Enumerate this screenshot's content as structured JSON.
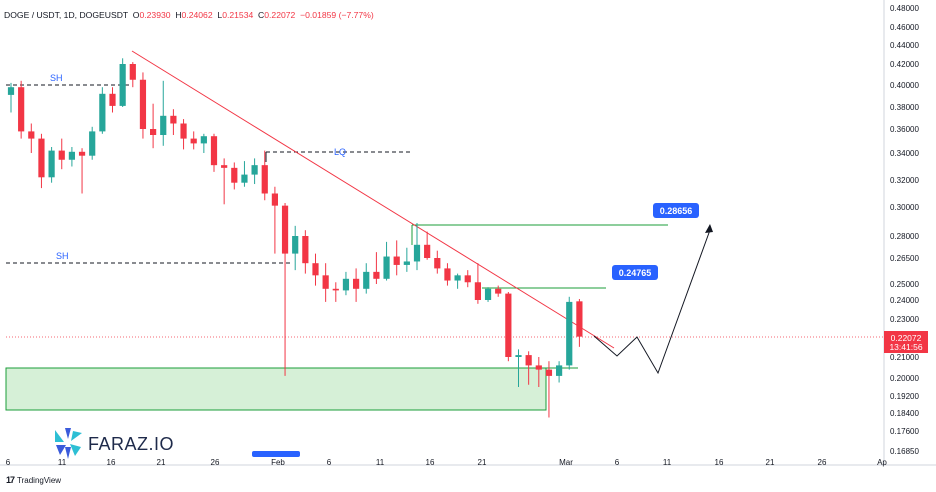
{
  "header": {
    "symbol": "DOGE / USDT, 1D, DOGEUSDT",
    "open_label": "O",
    "open": "0.23930",
    "high_label": "H",
    "high": "0.24062",
    "low_label": "L",
    "low": "0.21534",
    "close_label": "C",
    "close": "0.22072",
    "change": "−0.01859 (−7.77%)"
  },
  "footer": {
    "brand": "TradingView"
  },
  "watermark": {
    "text": "FARAZ.IO"
  },
  "colors": {
    "up": "#26a69a",
    "down": "#f23645",
    "trendline": "#f23645",
    "zone": "#c8ebc9",
    "target": "#2962ff"
  },
  "chart_data": {
    "type": "candlestick",
    "y_axis": {
      "ticks": [
        "0.48000",
        "0.46000",
        "0.44000",
        "0.42000",
        "0.40000",
        "0.38000",
        "0.36000",
        "0.34000",
        "0.32000",
        "0.30000",
        "0.28000",
        "0.26500",
        "0.25000",
        "0.24000",
        "0.23000",
        "0.22000",
        "0.21000",
        "0.20000",
        "0.19200",
        "0.18400",
        "0.17600",
        "0.16850"
      ],
      "last_price": "0.22072",
      "countdown": "13:41:56"
    },
    "x_axis": {
      "ticks": [
        "6",
        "11",
        "16",
        "21",
        "26",
        "Feb",
        "6",
        "11",
        "16",
        "21",
        "Mar",
        "6",
        "11",
        "16",
        "21",
        "26",
        "Ap"
      ]
    },
    "annotations": {
      "sh_upper": "SH",
      "sh_lower": "SH",
      "lq": "LQ",
      "target_1": "0.24765",
      "target_2": "0.28656"
    },
    "series": [
      {
        "o": 0.391,
        "h": 0.402,
        "l": 0.375,
        "c": 0.398
      },
      {
        "o": 0.398,
        "h": 0.404,
        "l": 0.352,
        "c": 0.358
      },
      {
        "o": 0.358,
        "h": 0.365,
        "l": 0.34,
        "c": 0.352
      },
      {
        "o": 0.352,
        "h": 0.356,
        "l": 0.314,
        "c": 0.322
      },
      {
        "o": 0.322,
        "h": 0.345,
        "l": 0.318,
        "c": 0.342
      },
      {
        "o": 0.342,
        "h": 0.352,
        "l": 0.328,
        "c": 0.335
      },
      {
        "o": 0.335,
        "h": 0.345,
        "l": 0.33,
        "c": 0.341
      },
      {
        "o": 0.341,
        "h": 0.344,
        "l": 0.31,
        "c": 0.338
      },
      {
        "o": 0.338,
        "h": 0.362,
        "l": 0.335,
        "c": 0.358
      },
      {
        "o": 0.358,
        "h": 0.398,
        "l": 0.356,
        "c": 0.392
      },
      {
        "o": 0.392,
        "h": 0.398,
        "l": 0.375,
        "c": 0.381
      },
      {
        "o": 0.381,
        "h": 0.426,
        "l": 0.38,
        "c": 0.42
      },
      {
        "o": 0.42,
        "h": 0.422,
        "l": 0.398,
        "c": 0.405
      },
      {
        "o": 0.405,
        "h": 0.412,
        "l": 0.352,
        "c": 0.36
      },
      {
        "o": 0.36,
        "h": 0.383,
        "l": 0.344,
        "c": 0.355
      },
      {
        "o": 0.355,
        "h": 0.404,
        "l": 0.346,
        "c": 0.372
      },
      {
        "o": 0.372,
        "h": 0.378,
        "l": 0.355,
        "c": 0.365
      },
      {
        "o": 0.365,
        "h": 0.369,
        "l": 0.343,
        "c": 0.352
      },
      {
        "o": 0.352,
        "h": 0.358,
        "l": 0.343,
        "c": 0.348
      },
      {
        "o": 0.348,
        "h": 0.356,
        "l": 0.34,
        "c": 0.354
      },
      {
        "o": 0.354,
        "h": 0.356,
        "l": 0.326,
        "c": 0.331
      },
      {
        "o": 0.331,
        "h": 0.336,
        "l": 0.302,
        "c": 0.329
      },
      {
        "o": 0.329,
        "h": 0.333,
        "l": 0.313,
        "c": 0.318
      },
      {
        "o": 0.318,
        "h": 0.334,
        "l": 0.315,
        "c": 0.324
      },
      {
        "o": 0.324,
        "h": 0.336,
        "l": 0.317,
        "c": 0.331
      },
      {
        "o": 0.331,
        "h": 0.342,
        "l": 0.305,
        "c": 0.31
      },
      {
        "o": 0.31,
        "h": 0.315,
        "l": 0.268,
        "c": 0.301
      },
      {
        "o": 0.301,
        "h": 0.303,
        "l": 0.201,
        "c": 0.268
      },
      {
        "o": 0.268,
        "h": 0.287,
        "l": 0.258,
        "c": 0.28
      },
      {
        "o": 0.28,
        "h": 0.284,
        "l": 0.256,
        "c": 0.262
      },
      {
        "o": 0.262,
        "h": 0.268,
        "l": 0.249,
        "c": 0.255
      },
      {
        "o": 0.255,
        "h": 0.262,
        "l": 0.239,
        "c": 0.247
      },
      {
        "o": 0.247,
        "h": 0.251,
        "l": 0.239,
        "c": 0.246
      },
      {
        "o": 0.246,
        "h": 0.257,
        "l": 0.243,
        "c": 0.253
      },
      {
        "o": 0.253,
        "h": 0.259,
        "l": 0.239,
        "c": 0.247
      },
      {
        "o": 0.247,
        "h": 0.262,
        "l": 0.244,
        "c": 0.257
      },
      {
        "o": 0.257,
        "h": 0.269,
        "l": 0.25,
        "c": 0.253
      },
      {
        "o": 0.253,
        "h": 0.276,
        "l": 0.252,
        "c": 0.266
      },
      {
        "o": 0.266,
        "h": 0.277,
        "l": 0.255,
        "c": 0.261
      },
      {
        "o": 0.261,
        "h": 0.272,
        "l": 0.257,
        "c": 0.263
      },
      {
        "o": 0.263,
        "h": 0.289,
        "l": 0.258,
        "c": 0.274
      },
      {
        "o": 0.274,
        "h": 0.283,
        "l": 0.264,
        "c": 0.265
      },
      {
        "o": 0.265,
        "h": 0.27,
        "l": 0.256,
        "c": 0.259
      },
      {
        "o": 0.259,
        "h": 0.262,
        "l": 0.249,
        "c": 0.252
      },
      {
        "o": 0.252,
        "h": 0.256,
        "l": 0.247,
        "c": 0.255
      },
      {
        "o": 0.255,
        "h": 0.258,
        "l": 0.248,
        "c": 0.251
      },
      {
        "o": 0.251,
        "h": 0.262,
        "l": 0.238,
        "c": 0.24
      },
      {
        "o": 0.24,
        "h": 0.248,
        "l": 0.239,
        "c": 0.247
      },
      {
        "o": 0.247,
        "h": 0.249,
        "l": 0.242,
        "c": 0.244
      },
      {
        "o": 0.244,
        "h": 0.245,
        "l": 0.208,
        "c": 0.21
      },
      {
        "o": 0.21,
        "h": 0.214,
        "l": 0.196,
        "c": 0.211
      },
      {
        "o": 0.211,
        "h": 0.213,
        "l": 0.197,
        "c": 0.206
      },
      {
        "o": 0.206,
        "h": 0.21,
        "l": 0.196,
        "c": 0.204
      },
      {
        "o": 0.204,
        "h": 0.208,
        "l": 0.182,
        "c": 0.201
      },
      {
        "o": 0.201,
        "h": 0.208,
        "l": 0.198,
        "c": 0.206
      },
      {
        "o": 0.206,
        "h": 0.242,
        "l": 0.204,
        "c": 0.239
      },
      {
        "o": 0.2393,
        "h": 0.24062,
        "l": 0.21534,
        "c": 0.22072
      }
    ]
  }
}
